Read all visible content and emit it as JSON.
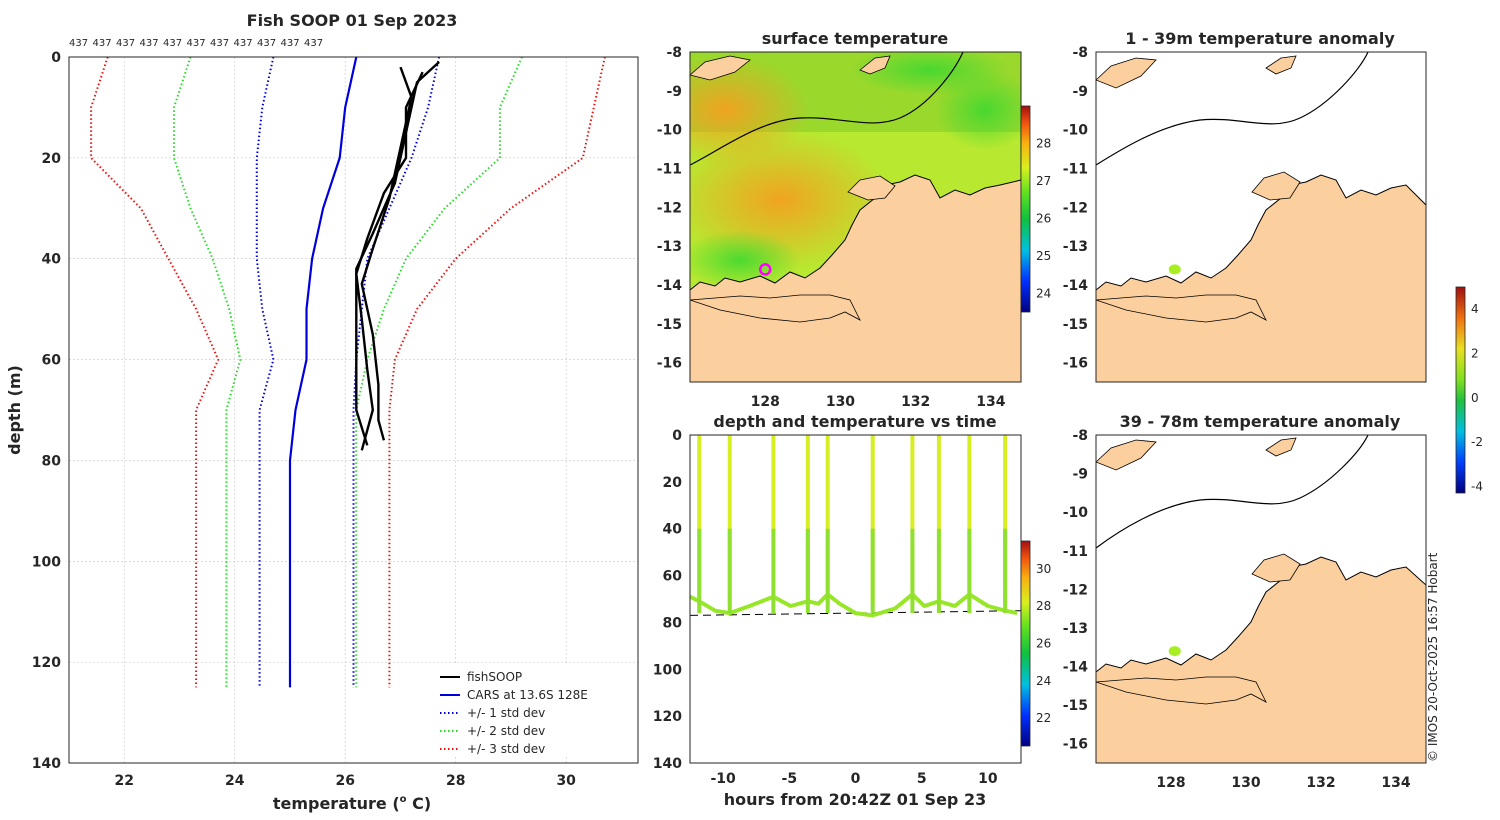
{
  "credit": "© IMOS 20-Oct-2025 16:57 Hobart",
  "colors": {
    "fishsoop": "#000000",
    "cars": "#0000dd",
    "std1": "#0000dd",
    "std2": "#22dd22",
    "std3": "#ee1111",
    "land": "#fccf9e",
    "coast": "#000000",
    "ocean_anom": "#ffffff",
    "anom_marker": "#a8ee22",
    "ship_marker": "#ff00ff",
    "dashed_bottom": "#000000"
  },
  "chart_data": [
    {
      "type": "line",
      "id": "profile",
      "title": "Fish SOOP 01 Sep 2023",
      "xlabel": "temperature (",
      "xlabel_sup": "o",
      "xlabel_tail": " C)",
      "ylabel": "depth (m)",
      "xlim": [
        21,
        31.3
      ],
      "ylim": [
        140,
        0
      ],
      "xticks": [
        22,
        24,
        26,
        28,
        30
      ],
      "yticks": [
        0,
        20,
        40,
        60,
        80,
        100,
        120,
        140
      ],
      "grid": true,
      "counts": [
        "437",
        "437",
        "437",
        "437",
        "437",
        "437",
        "437",
        "437",
        "437",
        "437",
        "437"
      ],
      "legend_position": "bottom-right",
      "legend": [
        {
          "label": "fishSOOP",
          "style": "solid",
          "color": "#000000"
        },
        {
          "label": "CARS at 13.6S 128E",
          "style": "solid",
          "color": "#0000dd"
        },
        {
          "label": "+/- 1 std dev",
          "style": "dotted",
          "color": "#0000dd"
        },
        {
          "label": "+/- 2 std dev",
          "style": "dotted",
          "color": "#22dd22"
        },
        {
          "label": "+/- 3 std dev",
          "style": "dotted",
          "color": "#ee1111"
        }
      ],
      "series": [
        {
          "name": "CARS mean",
          "style": "solid",
          "color": "#0000dd",
          "x": [
            26.2,
            26.0,
            25.9,
            25.6,
            25.4,
            25.3,
            25.3,
            25.1,
            25.0,
            25.0,
            25.0,
            25.0,
            25.0
          ],
          "y": [
            0,
            10,
            20,
            30,
            40,
            50,
            60,
            70,
            80,
            90,
            100,
            110,
            125
          ]
        },
        {
          "name": "+1 std",
          "style": "dotted",
          "color": "#0000dd",
          "x": [
            27.7,
            27.5,
            27.2,
            26.8,
            26.4,
            26.3,
            26.2,
            26.15,
            26.15,
            26.15,
            26.15,
            26.15,
            26.15
          ],
          "y": [
            0,
            10,
            20,
            30,
            40,
            50,
            60,
            70,
            80,
            90,
            100,
            110,
            125
          ]
        },
        {
          "name": "-1 std",
          "style": "dotted",
          "color": "#0000dd",
          "x": [
            24.7,
            24.5,
            24.4,
            24.4,
            24.4,
            24.5,
            24.7,
            24.45,
            24.45,
            24.45,
            24.45,
            24.45,
            24.45
          ],
          "y": [
            0,
            10,
            20,
            30,
            40,
            50,
            60,
            70,
            80,
            90,
            100,
            110,
            125
          ]
        },
        {
          "name": "+2 std",
          "style": "dotted",
          "color": "#22dd22",
          "x": [
            29.2,
            28.8,
            28.8,
            27.8,
            27.1,
            26.7,
            26.4,
            26.2,
            26.2,
            26.2,
            26.2,
            26.2,
            26.2
          ],
          "y": [
            0,
            10,
            20,
            30,
            40,
            50,
            60,
            70,
            80,
            90,
            100,
            110,
            125
          ]
        },
        {
          "name": "-2 std",
          "style": "dotted",
          "color": "#22dd22",
          "x": [
            23.2,
            22.9,
            22.9,
            23.2,
            23.6,
            23.9,
            24.1,
            23.85,
            23.85,
            23.85,
            23.85,
            23.85,
            23.85
          ],
          "y": [
            0,
            10,
            20,
            30,
            40,
            50,
            60,
            70,
            80,
            90,
            100,
            110,
            125
          ]
        },
        {
          "name": "+3 std",
          "style": "dotted",
          "color": "#ee1111",
          "x": [
            30.7,
            30.5,
            30.3,
            29.0,
            28.0,
            27.3,
            26.9,
            26.8,
            26.8,
            26.8,
            26.8,
            26.8,
            26.8
          ],
          "y": [
            0,
            10,
            20,
            30,
            40,
            50,
            60,
            70,
            80,
            90,
            100,
            110,
            125
          ]
        },
        {
          "name": "-3 std",
          "style": "dotted",
          "color": "#ee1111",
          "x": [
            21.7,
            21.4,
            21.4,
            22.3,
            22.8,
            23.3,
            23.7,
            23.3,
            23.3,
            23.3,
            23.3,
            23.3,
            23.3
          ],
          "y": [
            0,
            10,
            20,
            30,
            40,
            50,
            60,
            70,
            80,
            90,
            100,
            110,
            125
          ]
        },
        {
          "name": "fishSOOP cast A",
          "style": "solid",
          "color": "#000000",
          "x": [
            27.7,
            27.3,
            27.1,
            26.9,
            26.5,
            26.2,
            26.2,
            26.2,
            26.2,
            26.4
          ],
          "y": [
            1,
            5,
            15,
            25,
            35,
            42,
            50,
            60,
            70,
            77
          ]
        },
        {
          "name": "fishSOOP cast B",
          "style": "solid",
          "color": "#000000",
          "x": [
            27.0,
            27.2,
            27.0,
            26.8,
            26.5,
            26.3,
            26.5,
            26.6,
            26.6,
            26.7
          ],
          "y": [
            2,
            8,
            18,
            28,
            38,
            45,
            55,
            65,
            72,
            76
          ]
        },
        {
          "name": "fishSOOP cast C",
          "style": "solid",
          "color": "#000000",
          "x": [
            27.4,
            27.1,
            27.1,
            26.7,
            26.4,
            26.2,
            26.3,
            26.4,
            26.5,
            26.3
          ],
          "y": [
            3,
            10,
            20,
            27,
            36,
            43,
            52,
            62,
            70,
            78
          ]
        }
      ]
    },
    {
      "type": "heatmap",
      "id": "sst_map",
      "title": "surface temperature",
      "xlim": [
        126,
        134.8
      ],
      "ylim": [
        -16.5,
        -8
      ],
      "xticks": [
        128,
        130,
        132,
        134
      ],
      "yticks": [
        -8,
        -9,
        -10,
        -11,
        -12,
        -13,
        -14,
        -15,
        -16
      ],
      "colorbar": {
        "min": 23.5,
        "max": 29,
        "ticks": [
          24,
          25,
          26,
          27,
          28
        ]
      },
      "ship_position": {
        "lon": 128.0,
        "lat": -13.6
      }
    },
    {
      "type": "line",
      "id": "time_depth",
      "title": "depth and temperature vs time",
      "xlabel": "hours from 20:42Z 01 Sep 23",
      "xlim": [
        -12.5,
        12.5
      ],
      "ylim": [
        140,
        0
      ],
      "xticks": [
        -10,
        -5,
        0,
        5,
        10
      ],
      "yticks": [
        0,
        20,
        40,
        60,
        80,
        100,
        120,
        140
      ],
      "colorbar": {
        "min": 20.5,
        "max": 31.5,
        "ticks": [
          22,
          24,
          26,
          28,
          30
        ]
      },
      "cast_hours": [
        -11.8,
        -9.5,
        -6.2,
        -3.6,
        -2.1,
        1.3,
        4.3,
        6.3,
        8.6,
        11.3
      ],
      "bottom_line": {
        "x": [
          -12.5,
          12.5
        ],
        "y": [
          77,
          75
        ]
      },
      "track": {
        "x": [
          -12.5,
          -11.8,
          -10.6,
          -9.5,
          -8.0,
          -6.2,
          -4.9,
          -3.6,
          -2.8,
          -2.1,
          -1.2,
          0,
          1.3,
          3.0,
          4.3,
          5.2,
          6.3,
          7.5,
          8.6,
          10.0,
          11.3,
          12.2
        ],
        "y": [
          69,
          71,
          75,
          76,
          73,
          69,
          73,
          71,
          72,
          68,
          72,
          76,
          77,
          74,
          68,
          73,
          71,
          73,
          68,
          73,
          75,
          76
        ]
      }
    },
    {
      "type": "heatmap",
      "id": "anom_shallow",
      "title": "1 - 39m temperature anomaly",
      "xlim": [
        126,
        134.8
      ],
      "ylim": [
        -16.5,
        -8
      ],
      "xticks": [],
      "yticks": [
        -8,
        -9,
        -10,
        -11,
        -12,
        -13,
        -14,
        -15,
        -16
      ],
      "colorbar": {
        "min": -4.3,
        "max": 5,
        "ticks": [
          4,
          2,
          0,
          -2,
          -4
        ]
      },
      "anomaly_point": {
        "lon": 128.1,
        "lat": -13.6
      }
    },
    {
      "type": "heatmap",
      "id": "anom_deep",
      "title": "39 - 78m temperature anomaly",
      "xlim": [
        126,
        134.8
      ],
      "ylim": [
        -16.5,
        -8
      ],
      "xticks": [
        128,
        130,
        132,
        134
      ],
      "yticks": [
        -8,
        -9,
        -10,
        -11,
        -12,
        -13,
        -14,
        -15,
        -16
      ],
      "anomaly_point": {
        "lon": 128.1,
        "lat": -13.6
      }
    }
  ]
}
